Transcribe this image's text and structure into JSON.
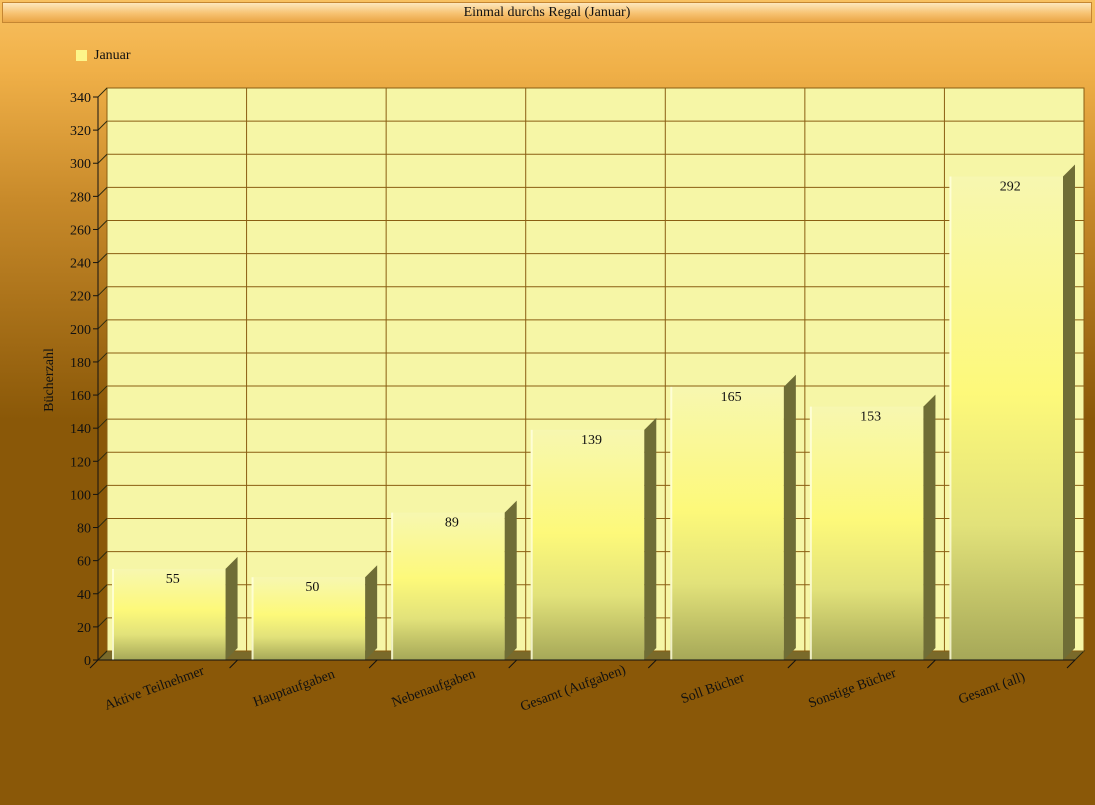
{
  "window": {
    "title": "Einmal durchs Regal (Januar)"
  },
  "chart_data": {
    "type": "bar",
    "title": "Einmal durchs Regal (Januar)",
    "xlabel": "",
    "ylabel": "Bücherzahl",
    "ylim": [
      0,
      340
    ],
    "yticks": [
      0,
      20,
      40,
      60,
      80,
      100,
      120,
      140,
      160,
      180,
      200,
      220,
      240,
      260,
      280,
      300,
      320,
      340
    ],
    "categories": [
      "Aktive Teilnehmer",
      "Hauptaufgaben",
      "Nebenaufgaben",
      "Gesamt (Aufgaben)",
      "Soll Bücher",
      "Sonstige Bücher",
      "Gesamt (all)"
    ],
    "series": [
      {
        "name": "Januar",
        "values": [
          55,
          50,
          89,
          139,
          165,
          153,
          292
        ]
      }
    ],
    "data_labels": [
      "55",
      "50",
      "89",
      "139",
      "165",
      "153",
      "292"
    ],
    "grid": true,
    "legend": "top-left",
    "colors": {
      "bar_top": "#fdf97a",
      "bar_bottom": "#a6a858",
      "bar_side": "#6f6d36",
      "plot_back": "#f6f6a6",
      "grid": "#8a5e12"
    }
  }
}
